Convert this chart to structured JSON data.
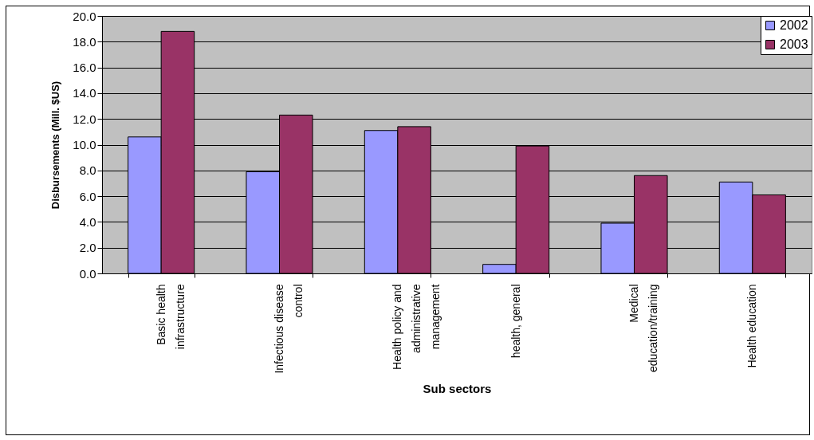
{
  "chart_data": {
    "type": "bar",
    "xlabel": "Sub sectors",
    "ylabel": "Disbursements (Mill. $US)",
    "categories": [
      "Basic health infrastructure",
      "Infectious disease control",
      "Health policy and administrative management",
      "health, general",
      "Medical education/training",
      "Health education"
    ],
    "series": [
      {
        "name": "2002",
        "color": "#9999ff",
        "values": [
          10.6,
          7.9,
          11.1,
          0.7,
          3.9,
          7.1
        ]
      },
      {
        "name": "2003",
        "color": "#993366",
        "values": [
          18.8,
          12.3,
          11.4,
          9.9,
          7.6,
          6.1
        ]
      }
    ],
    "ylim": [
      0,
      20
    ],
    "yticks": [
      {
        "value": 0,
        "label": "0.0"
      },
      {
        "value": 2,
        "label": "2.0"
      },
      {
        "value": 4,
        "label": "4.0"
      },
      {
        "value": 6,
        "label": "6.0"
      },
      {
        "value": 8,
        "label": "8.0"
      },
      {
        "value": 10,
        "label": "10.0"
      },
      {
        "value": 12,
        "label": "12.0"
      },
      {
        "value": 14,
        "label": "14.0"
      },
      {
        "value": 16,
        "label": "16.0"
      },
      {
        "value": 18,
        "label": "18.0"
      },
      {
        "value": 20,
        "label": "20.0"
      }
    ],
    "grid": "y",
    "legend": "top right"
  }
}
